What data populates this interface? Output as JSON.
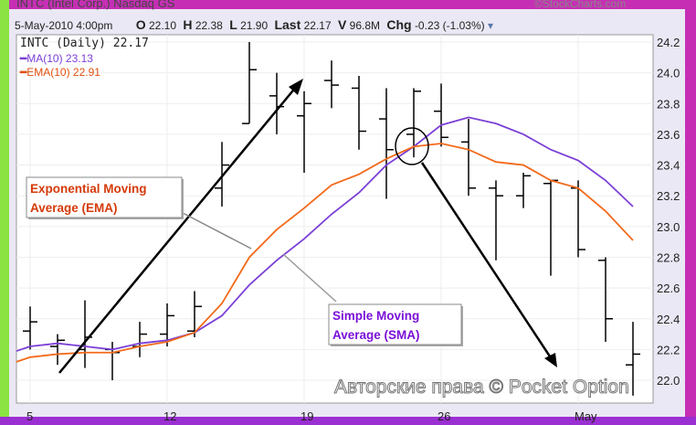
{
  "header": {
    "title": "INTC (Intel Corp.) Nasdaq GS",
    "source": "©StockCharts.com",
    "date": "5-May-2010 4:00pm",
    "o_label": "O",
    "o": "22.10",
    "h_label": "H",
    "h": "22.38",
    "l_label": "L",
    "l": "21.90",
    "last_label": "Last",
    "last": "22.17",
    "v_label": "V",
    "v": "96.8M",
    "chg_label": "Chg",
    "chg": "-0.23 (-1.03%)"
  },
  "legend": {
    "symbol": "INTC (Daily) 22.17",
    "ma": "MA(10) 23.13",
    "ema": "EMA(10) 22.91"
  },
  "annotations": {
    "ema_box": [
      "Exponential Moving",
      "Average (EMA)"
    ],
    "sma_box": [
      "Simple Moving",
      "Average (SMA)"
    ]
  },
  "watermark": "Авторские права © Pocket Option",
  "colors": {
    "ma": "#7b3fd6",
    "ema": "#f26a1b",
    "ema_text": "#d43a0a",
    "sma_text": "#7a10d8",
    "frame_top": "#c62fb4",
    "frame_left": "#8ae342",
    "frame_bottom": "#9a2fd2"
  },
  "chart_data": {
    "type": "ohlc",
    "ylim": [
      21.9,
      24.25
    ],
    "yticks": [
      "22.0",
      "22.2",
      "22.4",
      "22.6",
      "22.8",
      "23.0",
      "23.2",
      "23.4",
      "23.6",
      "23.8",
      "24.0",
      "24.2"
    ],
    "xticks": [
      {
        "label": "5",
        "index": 0
      },
      {
        "label": "12",
        "index": 5
      },
      {
        "label": "19",
        "index": 10
      },
      {
        "label": "26",
        "index": 15
      },
      {
        "label": "May",
        "index": 20
      }
    ],
    "grid": true,
    "ohlc": [
      [
        22.32,
        22.48,
        22.2,
        22.38
      ],
      [
        22.22,
        22.3,
        22.1,
        22.26
      ],
      [
        22.2,
        22.52,
        22.08,
        22.28
      ],
      [
        22.2,
        22.25,
        22.0,
        22.18
      ],
      [
        22.22,
        22.38,
        22.15,
        22.3
      ],
      [
        22.3,
        22.5,
        22.22,
        22.42
      ],
      [
        22.32,
        22.58,
        22.28,
        22.48
      ],
      [
        23.25,
        23.55,
        23.13,
        23.4
      ],
      [
        23.67,
        24.2,
        23.67,
        24.02
      ],
      [
        23.85,
        24.0,
        23.6,
        23.78
      ],
      [
        23.72,
        23.88,
        23.35,
        23.8
      ],
      [
        23.95,
        24.08,
        23.77,
        23.92
      ],
      [
        23.9,
        23.98,
        23.5,
        23.62
      ],
      [
        23.7,
        23.9,
        23.18,
        23.5
      ],
      [
        23.6,
        23.9,
        23.45,
        23.88
      ],
      [
        23.75,
        23.93,
        23.52,
        23.58
      ],
      [
        23.55,
        23.7,
        23.2,
        23.25
      ],
      [
        23.25,
        23.3,
        22.78,
        23.2
      ],
      [
        23.2,
        23.35,
        23.12,
        23.33
      ],
      [
        23.28,
        23.3,
        22.68,
        23.3
      ],
      [
        23.25,
        23.3,
        22.8,
        22.85
      ],
      [
        22.78,
        22.8,
        22.25,
        22.4
      ],
      [
        22.1,
        22.38,
        21.9,
        22.17
      ]
    ],
    "series": [
      {
        "name": "MA(10)",
        "values": [
          22.22,
          22.24,
          22.22,
          22.2,
          22.24,
          22.26,
          22.31,
          22.42,
          22.62,
          22.78,
          22.92,
          23.08,
          23.22,
          23.4,
          23.52,
          23.66,
          23.71,
          23.67,
          23.6,
          23.5,
          23.43,
          23.3,
          23.13
        ]
      },
      {
        "name": "EMA(10)",
        "values": [
          22.15,
          22.17,
          22.18,
          22.18,
          22.22,
          22.25,
          22.31,
          22.5,
          22.8,
          22.98,
          23.12,
          23.27,
          23.34,
          23.44,
          23.52,
          23.54,
          23.5,
          23.42,
          23.4,
          23.3,
          23.25,
          23.1,
          22.91
        ]
      }
    ]
  }
}
